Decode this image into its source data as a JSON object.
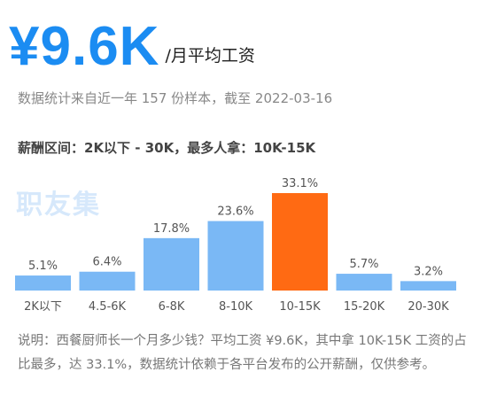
{
  "header": {
    "salary": "¥9.6K",
    "unit": "/月平均工资"
  },
  "sample_info": "数据统计来自近一年 157 份样本，截至 2022-03-16",
  "range_info": "薪酬区间：2K以下 - 30K，最多人拿：10K-15K",
  "watermark": "职友集",
  "note": "说明：西餐厨师长一个月多少钱？平均工资 ¥9.6K，其中拿 10K-15K 工资的占比最多，达 33.1%，数据统计依赖于各平台发布的公开薪酬，仅供参考。",
  "colors": {
    "bar": "#7ab8f5",
    "highlight": "#ff6a13",
    "accent": "#1b8cf2"
  },
  "chart_data": {
    "type": "bar",
    "categories": [
      "2K以下",
      "4.5-6K",
      "6-8K",
      "8-10K",
      "10-15K",
      "15-20K",
      "20-30K"
    ],
    "values": [
      5.1,
      6.4,
      17.8,
      23.6,
      33.1,
      5.7,
      3.2
    ],
    "labels": [
      "5.1%",
      "6.4%",
      "17.8%",
      "23.6%",
      "33.1%",
      "5.7%",
      "3.2%"
    ],
    "unit": "%",
    "highlight_index": 4,
    "title": "",
    "xlabel": "",
    "ylabel": "",
    "ylim": [
      0,
      33.1
    ],
    "grid": false,
    "legend": "none"
  }
}
